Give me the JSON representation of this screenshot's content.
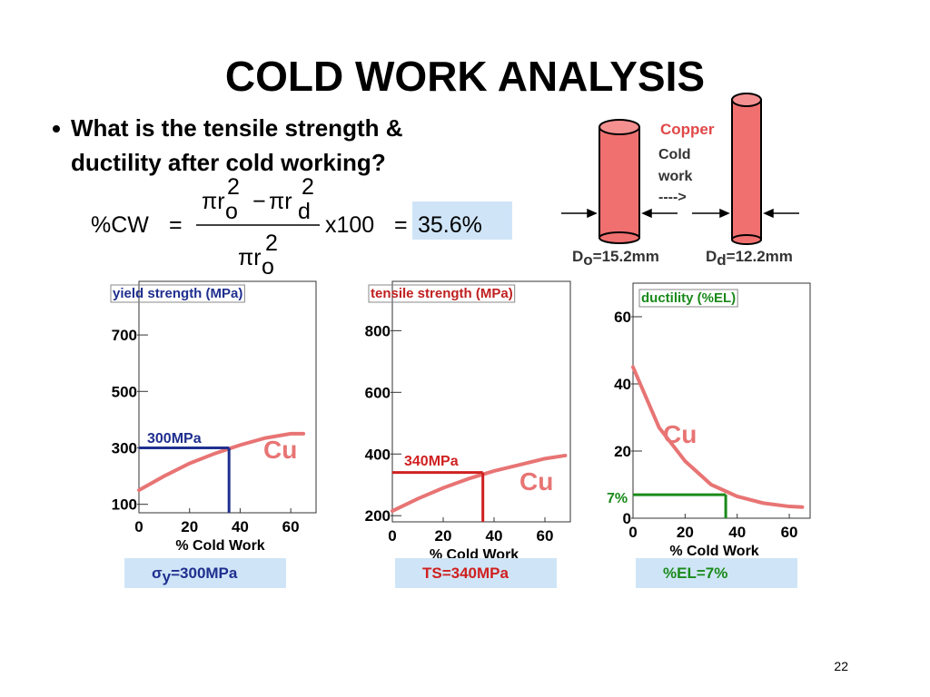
{
  "title": "COLD WORK ANALYSIS",
  "bullet": "What is the tensile strength & ductility after cold working?",
  "formula": {
    "lhs": "%CW",
    "equals": "=",
    "pi_r": "πr",
    "minus": "−",
    "sub_o": "o",
    "sub_d": "d",
    "exponent": "2",
    "factor": "x100",
    "result": "35.6%"
  },
  "diagram": {
    "material": "Copper",
    "process": [
      "Cold",
      "work",
      "---->"
    ],
    "initial": {
      "symbol": "D",
      "sub": "o",
      "value": "=15.2mm"
    },
    "drawn": {
      "symbol": "D",
      "sub": "d",
      "value": "=12.2mm"
    }
  },
  "chart_data": [
    {
      "type": "line",
      "title": "yield strength (MPa)",
      "title_color": "#1f2f8f",
      "xlabel": "% Cold Work",
      "xlim": [
        0,
        70
      ],
      "ylim": [
        70,
        890
      ],
      "xticks": [
        0,
        20,
        40,
        60
      ],
      "yticks": [
        100,
        300,
        500,
        700
      ],
      "x": [
        0,
        10,
        20,
        30,
        40,
        50,
        60,
        65
      ],
      "series": [
        {
          "name": "Cu",
          "color": "#e87474",
          "values": [
            150,
            200,
            245,
            280,
            310,
            335,
            350,
            350
          ]
        }
      ],
      "marker": {
        "x": 35.6,
        "y": 300,
        "label": "300MPa",
        "color": "#1f2f8f"
      },
      "result": {
        "symbol": "σ",
        "sub": "y",
        "text": "=300MPa"
      }
    },
    {
      "type": "line",
      "title": "tensile strength (MPa)",
      "title_color": "#c02020",
      "xlabel": "% Cold Work",
      "xlim": [
        0,
        70
      ],
      "ylim": [
        180,
        960
      ],
      "xticks": [
        0,
        20,
        40,
        60
      ],
      "yticks": [
        200,
        400,
        600,
        800
      ],
      "x": [
        0,
        10,
        20,
        30,
        40,
        50,
        60,
        68
      ],
      "series": [
        {
          "name": "Cu",
          "color": "#e87474",
          "values": [
            215,
            255,
            290,
            320,
            345,
            365,
            385,
            395
          ]
        }
      ],
      "marker": {
        "x": 35.6,
        "y": 340,
        "label": "340MPa",
        "color": "#d02020"
      },
      "result": {
        "text": "TS=340MPa"
      }
    },
    {
      "type": "line",
      "title": "ductility (%EL)",
      "title_color": "#1a8a1a",
      "xlabel": "% Cold Work",
      "xlim": [
        0,
        68
      ],
      "ylim": [
        0,
        70
      ],
      "xticks": [
        0,
        20,
        40,
        60
      ],
      "yticks": [
        0,
        20,
        40,
        60
      ],
      "x": [
        0,
        10,
        20,
        30,
        40,
        50,
        60,
        65
      ],
      "series": [
        {
          "name": "Cu",
          "color": "#e87474",
          "values": [
            45,
            27,
            17,
            10,
            6.5,
            4.5,
            3.5,
            3.3
          ]
        }
      ],
      "marker": {
        "x": 35.6,
        "y": 7,
        "label": "7%",
        "color": "#1a8a1a"
      },
      "result": {
        "text": "%EL=7%"
      }
    }
  ],
  "page_number": "22"
}
